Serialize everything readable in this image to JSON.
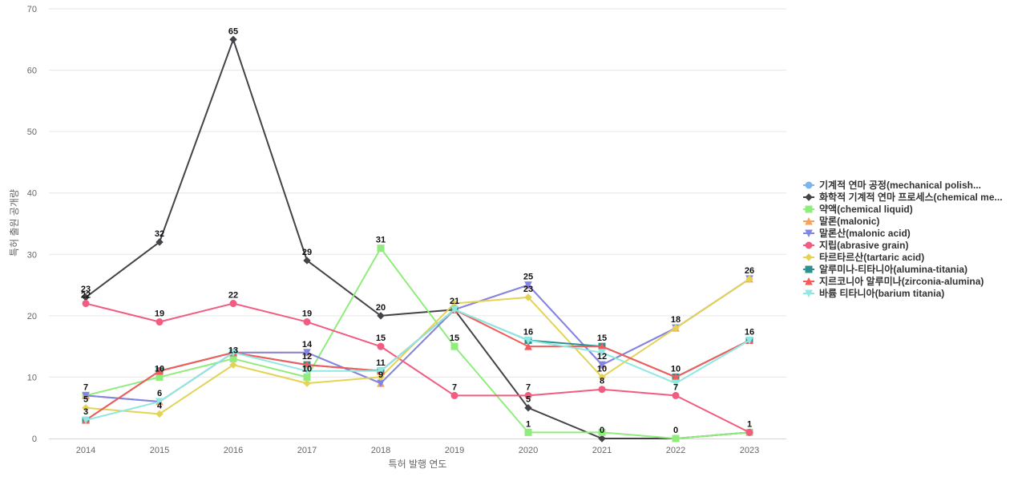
{
  "chart_data": {
    "type": "line",
    "xlabel": "특허 발행 연도",
    "ylabel": "특허 출원 공개량",
    "ylim": [
      0,
      70
    ],
    "yticks": [
      0,
      10,
      20,
      30,
      40,
      50,
      60,
      70
    ],
    "grid": true,
    "legend_position": "right",
    "categories": [
      "2014",
      "2015",
      "2016",
      "2017",
      "2018",
      "2019",
      "2020",
      "2021",
      "2022",
      "2023"
    ],
    "series": [
      {
        "name": "기계적 연마 공정(mechanical polish...",
        "color": "#7cb5ec",
        "marker": "circle",
        "values": [
          null,
          null,
          null,
          null,
          null,
          null,
          null,
          null,
          null,
          null
        ]
      },
      {
        "name": "화학적 기계적 연마 프로세스(chemical me...",
        "color": "#434348",
        "marker": "diamond",
        "values": [
          23,
          32,
          65,
          29,
          20,
          21,
          5,
          0,
          0,
          1
        ]
      },
      {
        "name": "약액(chemical liquid)",
        "color": "#90ed7d",
        "marker": "square",
        "values": [
          7,
          10,
          13,
          10,
          31,
          15,
          1,
          1,
          0,
          1
        ]
      },
      {
        "name": "말론(malonic)",
        "color": "#f7a35c",
        "marker": "triangle",
        "values": [
          7,
          6,
          14,
          14,
          9,
          21,
          25,
          12,
          18,
          26
        ]
      },
      {
        "name": "말론산(malonic acid)",
        "color": "#8085e9",
        "marker": "triangle-down",
        "values": [
          7,
          6,
          14,
          14,
          9,
          21,
          25,
          12,
          18,
          26
        ]
      },
      {
        "name": "지립(abrasive grain)",
        "color": "#f15c80",
        "marker": "circle",
        "values": [
          22,
          19,
          22,
          19,
          15,
          7,
          7,
          8,
          7,
          1
        ]
      },
      {
        "name": "타르타르산(tartaric acid)",
        "color": "#e4d354",
        "marker": "diamond",
        "values": [
          5,
          4,
          12,
          9,
          10,
          22,
          23,
          10,
          18,
          26
        ]
      },
      {
        "name": "알루미나-티타니아(alumina-titania)",
        "color": "#2b908f",
        "marker": "square",
        "values": [
          3,
          11,
          14,
          12,
          11,
          21,
          16,
          15,
          10,
          16
        ]
      },
      {
        "name": "지르코니아 알루미나(zirconia-alumina)",
        "color": "#f45b5b",
        "marker": "triangle",
        "values": [
          3,
          11,
          14,
          12,
          11,
          21,
          15,
          15,
          10,
          16
        ]
      },
      {
        "name": "바륨 티타니아(barium titania)",
        "color": "#91e8e1",
        "marker": "triangle-down",
        "values": [
          3,
          6,
          14,
          11,
          11,
          21,
          16,
          14,
          9,
          16
        ]
      }
    ],
    "data_labels": [
      {
        "x": "2014",
        "y": 23,
        "text": "23"
      },
      {
        "x": "2015",
        "y": 32,
        "text": "32"
      },
      {
        "x": "2016",
        "y": 65,
        "text": "65"
      },
      {
        "x": "2017",
        "y": 29,
        "text": "29"
      },
      {
        "x": "2018",
        "y": 20,
        "text": "20"
      },
      {
        "x": "2020",
        "y": 5,
        "text": "5"
      },
      {
        "x": "2021",
        "y": 0,
        "text": "0"
      },
      {
        "x": "2022",
        "y": 0,
        "text": "0"
      },
      {
        "x": "2018",
        "y": 31,
        "text": "31"
      },
      {
        "x": "2019",
        "y": 15,
        "text": "15"
      },
      {
        "x": "2020",
        "y": 1,
        "text": "1"
      },
      {
        "x": "2014",
        "y": 7,
        "text": "7"
      },
      {
        "x": "2015",
        "y": 6,
        "text": "6"
      },
      {
        "x": "2017",
        "y": 14,
        "text": "14"
      },
      {
        "x": "2018",
        "y": 9,
        "text": "9"
      },
      {
        "x": "2020",
        "y": 25,
        "text": "25"
      },
      {
        "x": "2021",
        "y": 12,
        "text": "12"
      },
      {
        "x": "2022",
        "y": 18,
        "text": "18"
      },
      {
        "x": "2023",
        "y": 26,
        "text": "26"
      },
      {
        "x": "2014",
        "y": 22,
        "text": "22"
      },
      {
        "x": "2015",
        "y": 19,
        "text": "19"
      },
      {
        "x": "2016",
        "y": 22,
        "text": "22"
      },
      {
        "x": "2017",
        "y": 19,
        "text": "19"
      },
      {
        "x": "2018",
        "y": 15,
        "text": "15"
      },
      {
        "x": "2019",
        "y": 7,
        "text": "7"
      },
      {
        "x": "2020",
        "y": 7,
        "text": "7"
      },
      {
        "x": "2021",
        "y": 8,
        "text": "8"
      },
      {
        "x": "2022",
        "y": 7,
        "text": "7"
      },
      {
        "x": "2023",
        "y": 1,
        "text": "1"
      },
      {
        "x": "2014",
        "y": 5,
        "text": "5"
      },
      {
        "x": "2015",
        "y": 4,
        "text": "4"
      },
      {
        "x": "2017",
        "y": 10,
        "text": "10"
      },
      {
        "x": "2019",
        "y": 21,
        "text": "21"
      },
      {
        "x": "2020",
        "y": 23,
        "text": "23"
      },
      {
        "x": "2021",
        "y": 10,
        "text": "10"
      },
      {
        "x": "2014",
        "y": 3,
        "text": "3"
      },
      {
        "x": "2015",
        "y": 10,
        "text": "10"
      },
      {
        "x": "2016",
        "y": 13,
        "text": "13"
      },
      {
        "x": "2017",
        "y": 12,
        "text": "12"
      },
      {
        "x": "2018",
        "y": 11,
        "text": "11"
      },
      {
        "x": "2020",
        "y": 16,
        "text": "16"
      },
      {
        "x": "2021",
        "y": 15,
        "text": "15"
      },
      {
        "x": "2022",
        "y": 10,
        "text": "10"
      },
      {
        "x": "2023",
        "y": 16,
        "text": "16"
      }
    ]
  }
}
